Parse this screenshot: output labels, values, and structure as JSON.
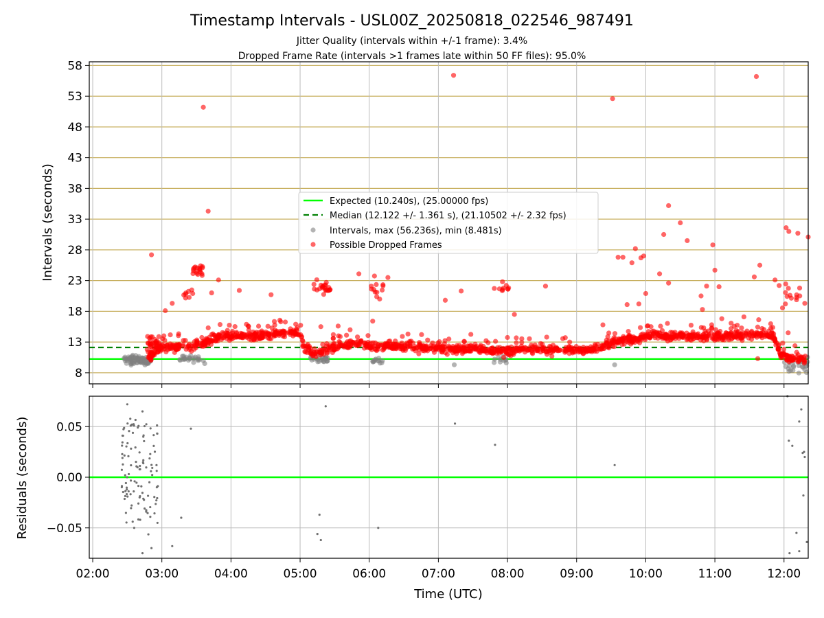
{
  "chart_data": [
    {
      "type": "scatter",
      "title": "Timestamp Intervals - USL00Z_20250818_022546_987491",
      "subtitle_lines": [
        "Jitter Quality (intervals within +/-1 frame): 3.4%",
        "Dropped Frame Rate (intervals >1 frames late within 50 FF files): 95.0%"
      ],
      "xlabel": "",
      "ylabel": "Intervals (seconds)",
      "x_ticks": [
        "02:00",
        "03:00",
        "04:00",
        "05:00",
        "06:00",
        "07:00",
        "08:00",
        "09:00",
        "10:00",
        "11:00",
        "12:00"
      ],
      "x_tick_hours": [
        2,
        3,
        4,
        5,
        6,
        7,
        8,
        9,
        10,
        11,
        12
      ],
      "xlim": [
        1.95,
        12.35
      ],
      "ylim": [
        6.2,
        58.6
      ],
      "y_ticks": [
        8,
        13,
        18,
        23,
        28,
        33,
        38,
        43,
        48,
        53,
        58
      ],
      "y_tick_labels": [
        "8",
        "13",
        "18",
        "23",
        "28",
        "33",
        "38",
        "43",
        "48",
        "53",
        "58"
      ],
      "grid": true,
      "legend_position": "center",
      "legend": {
        "expected": "Expected (10.240s), (25.00000 fps)",
        "median": "Median (12.122 +/- 1.361 s), (21.10502 +/- 2.32 fps)",
        "intervals": "Intervals, max (56.236s), min (8.481s)",
        "dropped": "Possible Dropped Frames"
      },
      "expected_line": 10.24,
      "median_line": 12.122,
      "colors": {
        "expected": "#00ff00",
        "median": "#008000",
        "intervals": "#808080",
        "dropped": "#ff0000",
        "hgrid": "#c8b060",
        "vgrid": "#bbbbbb"
      },
      "baseline_trend": [
        [
          2.45,
          10.2
        ],
        [
          2.8,
          10.3
        ],
        [
          2.95,
          12.0
        ],
        [
          3.2,
          12.2
        ],
        [
          3.4,
          12.3
        ],
        [
          3.6,
          12.8
        ],
        [
          3.75,
          13.5
        ],
        [
          3.9,
          14.0
        ],
        [
          4.3,
          14.0
        ],
        [
          4.6,
          14.2
        ],
        [
          4.9,
          14.5
        ],
        [
          5.0,
          14.9
        ],
        [
          5.05,
          12.3
        ],
        [
          5.2,
          11.2
        ],
        [
          5.35,
          11.6
        ],
        [
          5.6,
          12.5
        ],
        [
          5.9,
          12.8
        ],
        [
          6.05,
          12.0
        ],
        [
          6.3,
          12.5
        ],
        [
          6.7,
          12.2
        ],
        [
          7.0,
          12.0
        ],
        [
          7.2,
          11.8
        ],
        [
          7.5,
          11.9
        ],
        [
          7.9,
          11.5
        ],
        [
          8.2,
          11.8
        ],
        [
          8.5,
          11.8
        ],
        [
          8.8,
          11.7
        ],
        [
          9.2,
          11.8
        ],
        [
          9.4,
          12.3
        ],
        [
          9.6,
          13.3
        ],
        [
          9.9,
          13.6
        ],
        [
          10.1,
          14.2
        ],
        [
          10.4,
          14.0
        ],
        [
          10.7,
          13.8
        ],
        [
          11.0,
          14.0
        ],
        [
          11.3,
          14.0
        ],
        [
          11.6,
          14.2
        ],
        [
          11.85,
          14.0
        ],
        [
          11.95,
          11.0
        ],
        [
          12.05,
          10.4
        ],
        [
          12.35,
          10.4
        ]
      ],
      "grey_clusters": [
        [
          2.45,
          2.85,
          10.05,
          0.35,
          90
        ],
        [
          3.25,
          3.6,
          10.3,
          0.3,
          25
        ],
        [
          5.15,
          5.4,
          10.1,
          0.3,
          25
        ],
        [
          6.05,
          6.2,
          10.1,
          0.3,
          12
        ],
        [
          7.8,
          8.0,
          10.3,
          0.3,
          10
        ],
        [
          12.0,
          12.35,
          9.3,
          0.6,
          30
        ]
      ],
      "grey_outliers": [
        [
          3.62,
          9.5
        ],
        [
          7.23,
          9.3
        ],
        [
          9.55,
          9.3
        ],
        [
          12.3,
          8.5
        ]
      ],
      "red_clusters": [
        [
          3.45,
          3.6,
          24.8,
          0.4,
          18
        ],
        [
          5.2,
          5.45,
          21.8,
          0.6,
          22
        ],
        [
          6.0,
          6.2,
          21.8,
          0.8,
          12
        ],
        [
          7.8,
          8.05,
          21.8,
          0.5,
          10
        ],
        [
          3.3,
          3.45,
          20.8,
          0.5,
          8
        ],
        [
          11.95,
          12.25,
          20.5,
          0.8,
          12
        ]
      ],
      "red_outliers": [
        [
          2.85,
          27.2
        ],
        [
          3.05,
          18.1
        ],
        [
          3.15,
          19.3
        ],
        [
          3.6,
          51.2
        ],
        [
          3.67,
          34.3
        ],
        [
          3.72,
          21.0
        ],
        [
          3.82,
          23.1
        ],
        [
          4.12,
          21.4
        ],
        [
          4.58,
          20.7
        ],
        [
          4.72,
          16.3
        ],
        [
          5.3,
          15.5
        ],
        [
          5.55,
          15.6
        ],
        [
          5.85,
          24.1
        ],
        [
          6.05,
          16.4
        ],
        [
          6.27,
          23.5
        ],
        [
          7.1,
          19.8
        ],
        [
          7.22,
          56.4
        ],
        [
          7.33,
          21.3
        ],
        [
          8.1,
          17.5
        ],
        [
          8.55,
          22.1
        ],
        [
          9.38,
          15.8
        ],
        [
          9.52,
          52.6
        ],
        [
          9.6,
          26.8
        ],
        [
          9.67,
          26.8
        ],
        [
          9.73,
          19.1
        ],
        [
          9.8,
          25.9
        ],
        [
          9.85,
          28.2
        ],
        [
          9.9,
          19.2
        ],
        [
          9.93,
          26.7
        ],
        [
          9.97,
          27.0
        ],
        [
          10.0,
          20.9
        ],
        [
          10.2,
          24.1
        ],
        [
          10.26,
          30.5
        ],
        [
          10.33,
          35.2
        ],
        [
          10.33,
          22.6
        ],
        [
          10.5,
          32.4
        ],
        [
          10.6,
          29.5
        ],
        [
          10.8,
          20.5
        ],
        [
          10.82,
          18.3
        ],
        [
          10.88,
          22.1
        ],
        [
          10.97,
          28.8
        ],
        [
          11.0,
          24.7
        ],
        [
          11.06,
          22.0
        ],
        [
          11.1,
          16.8
        ],
        [
          11.42,
          17.1
        ],
        [
          11.57,
          23.6
        ],
        [
          11.6,
          56.2
        ],
        [
          11.65,
          25.5
        ],
        [
          11.62,
          10.3
        ],
        [
          11.87,
          23.1
        ],
        [
          11.93,
          22.2
        ],
        [
          12.02,
          19.2
        ],
        [
          12.03,
          31.6
        ],
        [
          12.07,
          31.0
        ],
        [
          12.2,
          30.7
        ],
        [
          12.35,
          30.1
        ],
        [
          12.3,
          19.3
        ],
        [
          12.06,
          14.5
        ]
      ]
    },
    {
      "type": "scatter",
      "title": "",
      "xlabel": "Time (UTC)",
      "ylabel": "Residuals (seconds)",
      "x_ticks": [
        "02:00",
        "03:00",
        "04:00",
        "05:00",
        "06:00",
        "07:00",
        "08:00",
        "09:00",
        "10:00",
        "11:00",
        "12:00"
      ],
      "x_tick_hours": [
        2,
        3,
        4,
        5,
        6,
        7,
        8,
        9,
        10,
        11,
        12
      ],
      "xlim": [
        1.95,
        12.35
      ],
      "ylim": [
        -0.08,
        0.08
      ],
      "y_ticks": [
        0.05,
        0.0,
        -0.05
      ],
      "y_tick_labels": [
        "0.05",
        "0.00",
        "−0.05"
      ],
      "zero_line": 0.0,
      "grid": true,
      "colors": {
        "points": "#707070",
        "zero": "#00ff00",
        "grid": "#bbbbbb"
      },
      "cluster": [
        2.42,
        2.95,
        -0.045,
        0.058,
        110
      ],
      "points": [
        [
          2.5,
          0.072
        ],
        [
          2.72,
          0.065
        ],
        [
          2.82,
          -0.005
        ],
        [
          2.85,
          -0.07
        ],
        [
          2.72,
          -0.075
        ],
        [
          2.6,
          -0.05
        ],
        [
          3.15,
          -0.068
        ],
        [
          3.28,
          -0.04
        ],
        [
          3.42,
          0.048
        ],
        [
          5.28,
          -0.037
        ],
        [
          5.25,
          -0.056
        ],
        [
          5.3,
          -0.062
        ],
        [
          5.37,
          0.07
        ],
        [
          6.13,
          -0.05
        ],
        [
          7.24,
          0.053
        ],
        [
          7.82,
          0.032
        ],
        [
          9.55,
          0.012
        ],
        [
          12.07,
          0.036
        ],
        [
          12.12,
          0.031
        ],
        [
          12.18,
          -0.055
        ],
        [
          12.22,
          0.055
        ],
        [
          12.25,
          0.067
        ],
        [
          12.27,
          0.024
        ],
        [
          12.28,
          -0.018
        ],
        [
          12.29,
          0.025
        ],
        [
          12.3,
          0.02
        ],
        [
          12.33,
          -0.064
        ],
        [
          12.08,
          -0.075
        ],
        [
          12.22,
          -0.073
        ],
        [
          12.05,
          0.08
        ]
      ]
    }
  ]
}
